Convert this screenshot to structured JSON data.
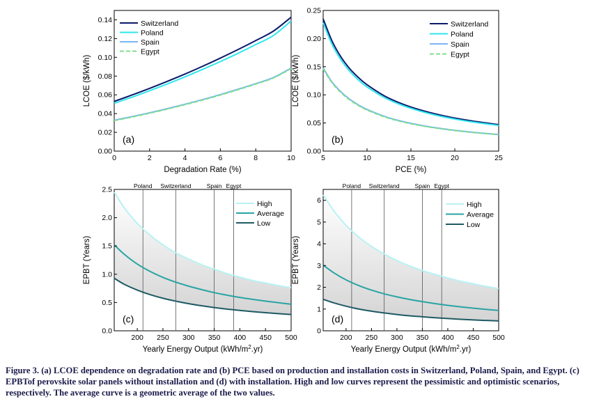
{
  "figure": {
    "caption_label": "Figure 3.",
    "caption_text": " (a) LCOE dependence on degradation rate and (b) PCE based on production and installation costs in Switzerland, Poland, Spain, and Egypt. (c) EPBTof perovskite solar panels without installation and (d) with installation. High and low curves represent the pessimistic and optimistic scenarios, respectively. The average curve is a geometric average of the two values."
  },
  "colors": {
    "switzerland": "#0a1a6b",
    "poland": "#2ee6ee",
    "spain": "#7ab6f5",
    "egypt": "#7fe08a",
    "high": "#b8f2f4",
    "average": "#2aa3a3",
    "low": "#1d5a63",
    "band": "#d4d4d4"
  },
  "chart_data": [
    {
      "type": "line",
      "panel": "(a)",
      "xlabel": "Degradation Rate (%)",
      "ylabel": "LCOE ($/kWh)",
      "xlim": [
        0,
        10
      ],
      "ylim": [
        0,
        0.15
      ],
      "xticks": [
        0,
        2,
        4,
        6,
        8,
        10
      ],
      "xtick_labels": [
        "0",
        "2",
        "4",
        "6",
        "8",
        "10"
      ],
      "yticks": [
        0.0,
        0.02,
        0.04,
        0.06,
        0.08,
        0.1,
        0.12,
        0.14
      ],
      "ytick_labels": [
        "0.00",
        "0.02",
        "0.04",
        "0.06",
        "0.08",
        "0.10",
        "0.12",
        "0.14"
      ],
      "legend": "top-left",
      "x": [
        0,
        1,
        2,
        3,
        4,
        5,
        6,
        7,
        8,
        9,
        10
      ],
      "series": [
        {
          "name": "Switzerland",
          "style": "solid",
          "values": [
            0.053,
            0.0598,
            0.0669,
            0.0744,
            0.0822,
            0.0905,
            0.0992,
            0.1083,
            0.1179,
            0.128,
            0.1428
          ]
        },
        {
          "name": "Poland",
          "style": "solid",
          "values": [
            0.051,
            0.0575,
            0.0644,
            0.0716,
            0.0792,
            0.0872,
            0.0955,
            0.1043,
            0.1136,
            0.1233,
            0.1388
          ]
        },
        {
          "name": "Spain",
          "style": "solid",
          "values": [
            0.033,
            0.0368,
            0.0409,
            0.0453,
            0.05,
            0.055,
            0.0603,
            0.066,
            0.072,
            0.0785,
            0.0885
          ]
        },
        {
          "name": "Egypt",
          "style": "dashed",
          "values": [
            0.0325,
            0.0363,
            0.0404,
            0.0448,
            0.0495,
            0.0545,
            0.0598,
            0.0655,
            0.0715,
            0.078,
            0.088
          ]
        }
      ]
    },
    {
      "type": "line",
      "panel": "(b)",
      "xlabel": "PCE (%)",
      "ylabel": "LCOE ($/kWh)",
      "xlim": [
        5,
        25
      ],
      "ylim": [
        0,
        0.25
      ],
      "xticks": [
        5,
        10,
        15,
        20,
        25
      ],
      "xtick_labels": [
        "5",
        "10",
        "15",
        "20",
        "25"
      ],
      "yticks": [
        0.0,
        0.05,
        0.1,
        0.15,
        0.2,
        0.25
      ],
      "ytick_labels": [
        "0.00",
        "0.05",
        "0.10",
        "0.15",
        "0.20",
        "0.25"
      ],
      "legend": "top-right",
      "x": [
        5,
        6,
        7,
        8,
        9,
        10,
        12,
        14,
        16,
        18,
        20,
        22,
        25
      ],
      "series": [
        {
          "name": "Switzerland",
          "style": "solid",
          "values": [
            0.235,
            0.196,
            0.168,
            0.147,
            0.131,
            0.118,
            0.098,
            0.084,
            0.0735,
            0.0653,
            0.0588,
            0.0535,
            0.047
          ]
        },
        {
          "name": "Poland",
          "style": "solid",
          "values": [
            0.228,
            0.19,
            0.163,
            0.1425,
            0.1267,
            0.114,
            0.095,
            0.0814,
            0.0713,
            0.0633,
            0.057,
            0.0518,
            0.0456
          ]
        },
        {
          "name": "Spain",
          "style": "solid",
          "values": [
            0.148,
            0.123,
            0.1057,
            0.0925,
            0.0822,
            0.074,
            0.0617,
            0.0529,
            0.0463,
            0.0411,
            0.037,
            0.0336,
            0.0296
          ]
        },
        {
          "name": "Egypt",
          "style": "dashed",
          "values": [
            0.146,
            0.1217,
            0.1043,
            0.0913,
            0.0811,
            0.073,
            0.0608,
            0.0521,
            0.0456,
            0.0406,
            0.0365,
            0.0332,
            0.0292
          ]
        }
      ]
    },
    {
      "type": "line",
      "panel": "(c)",
      "xlabel": "Yearly Energy Output (kWh/m",
      "xlabel_sup": "2",
      "xlabel_end": ".yr)",
      "ylabel": "EPBT (Years)",
      "xlim": [
        155,
        500
      ],
      "ylim": [
        0,
        2.5
      ],
      "xticks": [
        200,
        250,
        300,
        350,
        400,
        450,
        500
      ],
      "xtick_labels": [
        "200",
        "250",
        "300",
        "350",
        "400",
        "450",
        "500"
      ],
      "yticks": [
        0.0,
        0.5,
        1.0,
        1.5,
        2.0,
        2.5
      ],
      "ytick_labels": [
        "0.0",
        "0.5",
        "1.0",
        "1.5",
        "2.0",
        "2.5"
      ],
      "legend": "top-right",
      "markers": [
        {
          "label": "Poland",
          "x": 211
        },
        {
          "label": "Switzerland",
          "x": 275
        },
        {
          "label": "Spain",
          "x": 350
        },
        {
          "label": "Egypt",
          "x": 388
        }
      ],
      "x": [
        155,
        175,
        200,
        225,
        250,
        275,
        300,
        325,
        350,
        375,
        400,
        425,
        450,
        475,
        500
      ],
      "series": [
        {
          "name": "High",
          "values": [
            2.45,
            2.17,
            1.9,
            1.69,
            1.52,
            1.38,
            1.27,
            1.17,
            1.09,
            1.01,
            0.95,
            0.89,
            0.845,
            0.8,
            0.76
          ]
        },
        {
          "name": "Average",
          "values": [
            1.52,
            1.35,
            1.18,
            1.05,
            0.945,
            0.86,
            0.79,
            0.73,
            0.675,
            0.63,
            0.59,
            0.556,
            0.525,
            0.497,
            0.47
          ]
        },
        {
          "name": "Low",
          "values": [
            0.93,
            0.82,
            0.72,
            0.64,
            0.576,
            0.524,
            0.48,
            0.443,
            0.411,
            0.384,
            0.36,
            0.339,
            0.32,
            0.303,
            0.288
          ]
        }
      ]
    },
    {
      "type": "line",
      "panel": "(d)",
      "xlabel": "Yearly Energy Output (kWh/m",
      "xlabel_sup": "2",
      "xlabel_end": ".yr)",
      "ylabel": "EPBT (Years)",
      "xlim": [
        155,
        500
      ],
      "ylim": [
        0,
        6.5
      ],
      "xticks": [
        200,
        250,
        300,
        350,
        400,
        450,
        500
      ],
      "xtick_labels": [
        "200",
        "250",
        "300",
        "350",
        "400",
        "450",
        "500"
      ],
      "yticks": [
        0,
        1,
        2,
        3,
        4,
        5,
        6
      ],
      "ytick_labels": [
        "0",
        "1",
        "2",
        "3",
        "4",
        "5",
        "6"
      ],
      "legend": "top-right",
      "markers": [
        {
          "label": "Poland",
          "x": 211
        },
        {
          "label": "Switzerland",
          "x": 275
        },
        {
          "label": "Spain",
          "x": 350
        },
        {
          "label": "Egypt",
          "x": 388
        }
      ],
      "x": [
        155,
        175,
        200,
        225,
        250,
        275,
        300,
        325,
        350,
        375,
        400,
        425,
        450,
        475,
        500
      ],
      "series": [
        {
          "name": "High",
          "values": [
            6.25,
            5.55,
            4.85,
            4.31,
            3.88,
            3.53,
            3.23,
            2.98,
            2.77,
            2.59,
            2.43,
            2.28,
            2.16,
            2.04,
            1.94
          ]
        },
        {
          "name": "Average",
          "values": [
            3.02,
            2.68,
            2.34,
            2.08,
            1.87,
            1.7,
            1.56,
            1.44,
            1.34,
            1.25,
            1.17,
            1.1,
            1.04,
            0.985,
            0.936
          ]
        },
        {
          "name": "Low",
          "values": [
            1.45,
            1.29,
            1.13,
            1.0,
            0.9,
            0.82,
            0.75,
            0.69,
            0.645,
            0.6,
            0.565,
            0.53,
            0.5,
            0.475,
            0.452
          ]
        }
      ]
    }
  ]
}
